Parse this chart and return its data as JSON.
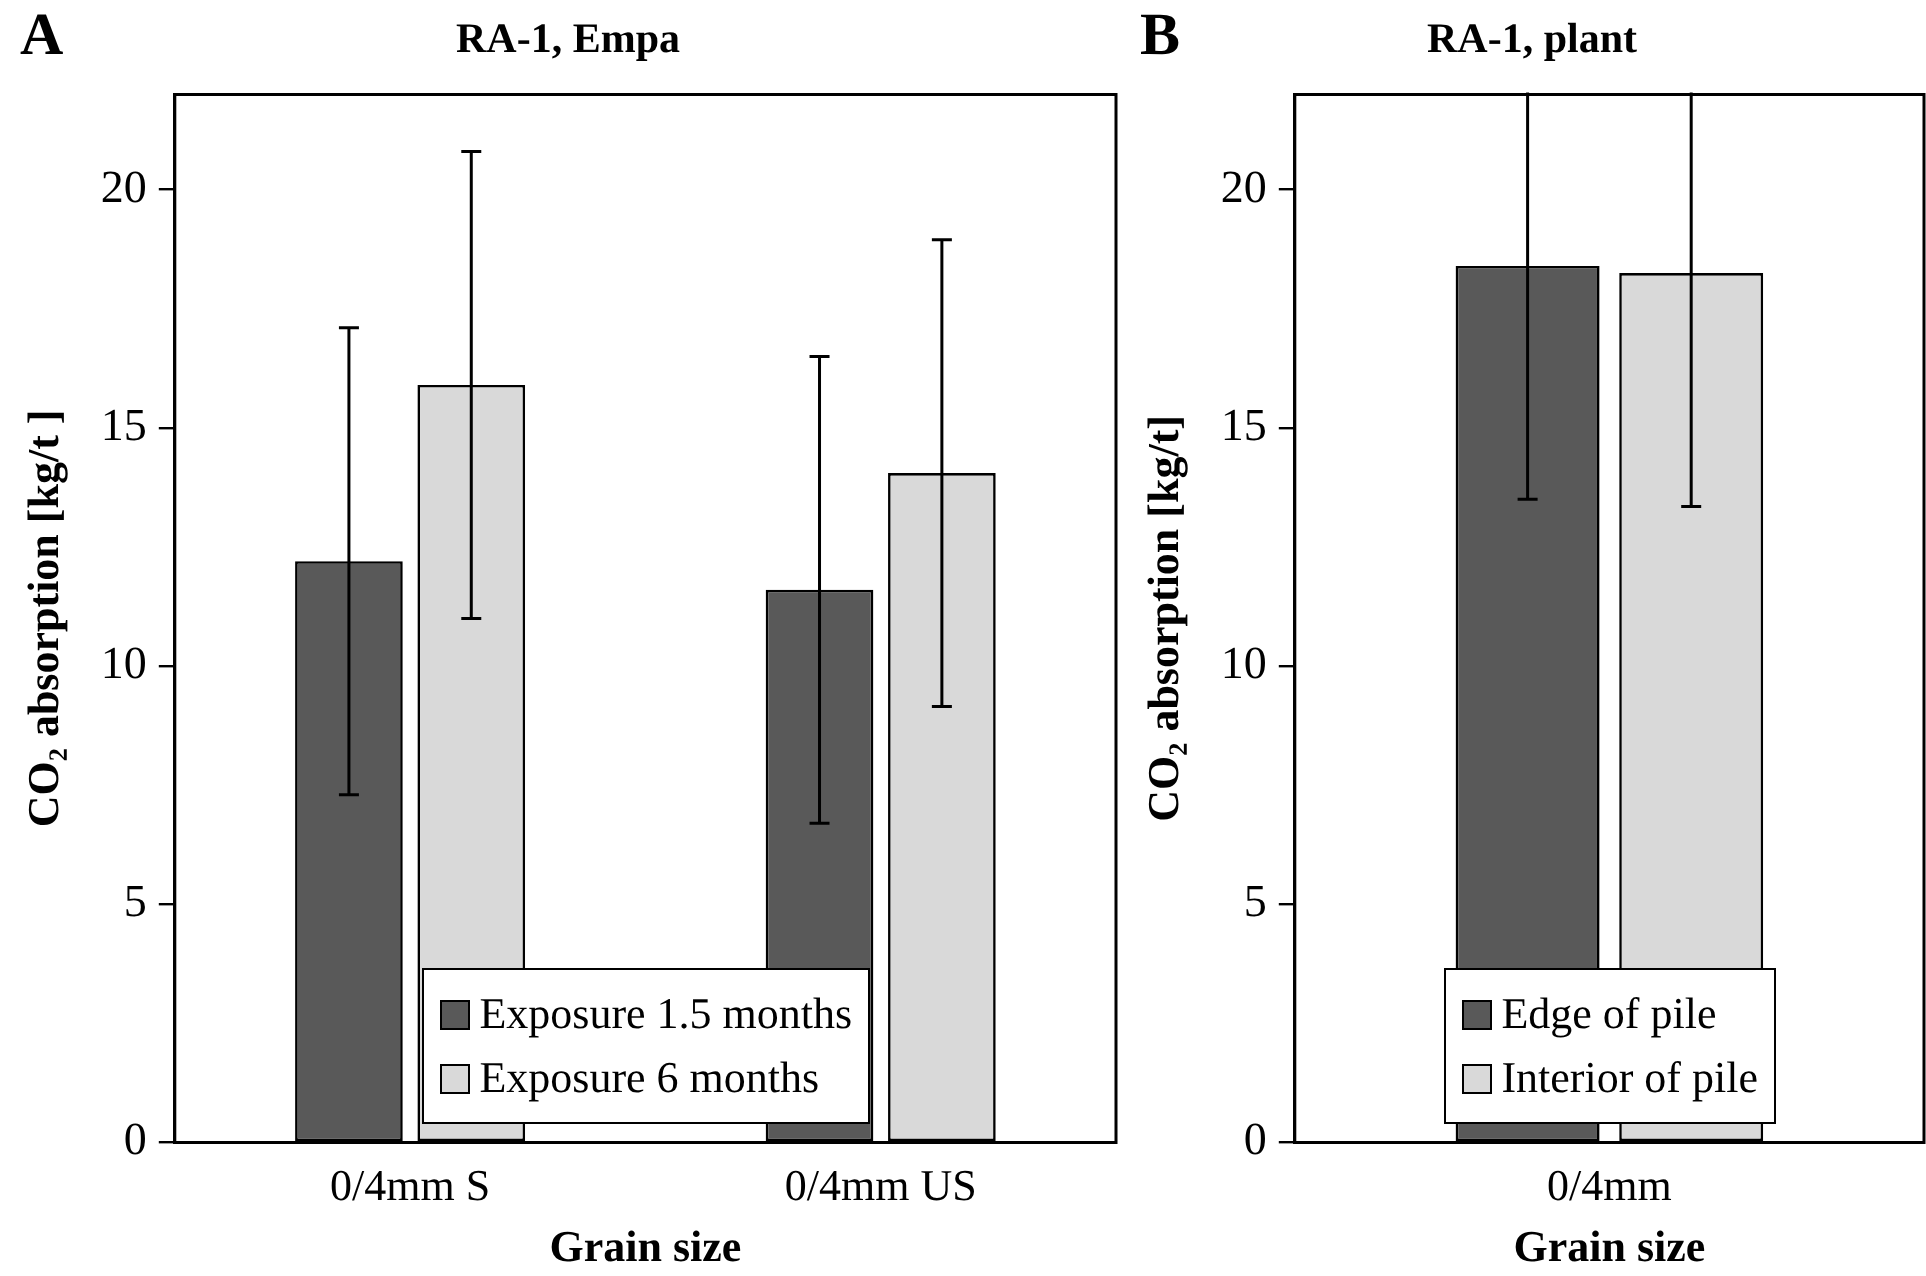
{
  "chart_data": [
    {
      "type": "bar",
      "title": "RA-1, Empa",
      "xlabel": "Grain size",
      "ylabel": "CO₂ absorption [kg/t ]",
      "annotations": [
        "A"
      ],
      "categories": [
        "0/4mm S",
        "0/4mm US"
      ],
      "series": [
        {
          "name": "Exposure 1.5 months",
          "color": "#595959",
          "values": [
            12.2,
            11.6
          ],
          "errors": [
            4.9,
            4.9
          ]
        },
        {
          "name": "Exposure 6 months",
          "color": "#d9d9d9",
          "values": [
            15.9,
            14.05
          ],
          "errors": [
            4.9,
            4.9
          ]
        }
      ],
      "ylim": [
        0,
        22
      ],
      "yticks": [
        0,
        5,
        10,
        15,
        20
      ],
      "grid": false,
      "legend": "bottom"
    },
    {
      "type": "bar",
      "title": "RA-1, plant",
      "xlabel": "Grain size",
      "ylabel": "CO₂ absorption [kg/t]",
      "annotations": [
        "B"
      ],
      "categories": [
        "0/4mm"
      ],
      "series": [
        {
          "name": "Edge of pile",
          "color": "#595959",
          "values": [
            18.4
          ],
          "errors": [
            4.9
          ]
        },
        {
          "name": "Interior of pile",
          "color": "#d9d9d9",
          "values": [
            18.25
          ],
          "errors": [
            4.9
          ]
        }
      ],
      "ylim": [
        0,
        22
      ],
      "yticks": [
        0,
        5,
        10,
        15,
        20
      ],
      "grid": false,
      "legend": "bottom"
    }
  ]
}
